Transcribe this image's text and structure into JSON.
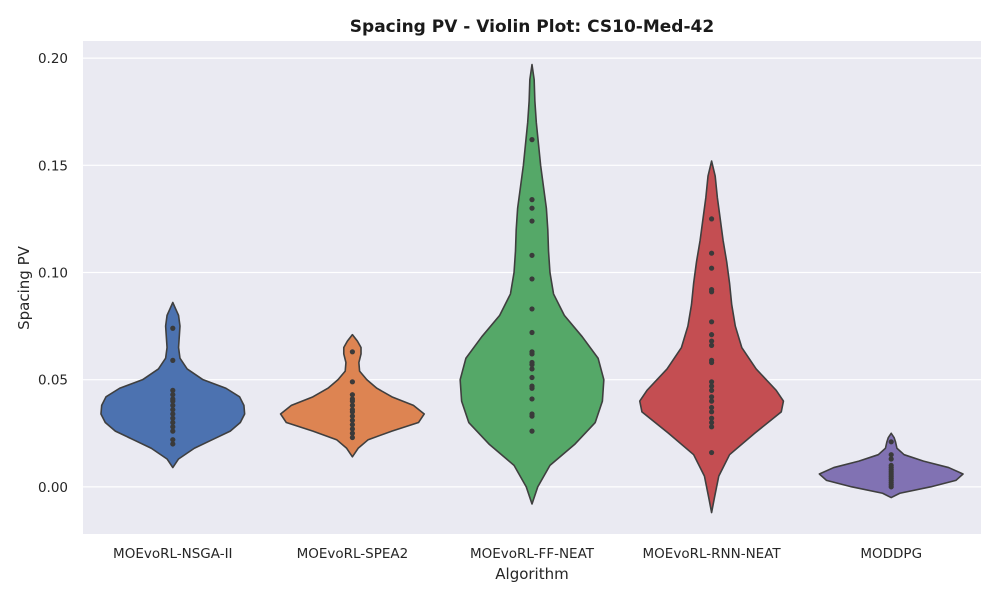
{
  "chart_data": {
    "type": "violin",
    "title": "Spacing PV - Violin Plot: CS10-Med-42",
    "xlabel": "Algorithm",
    "ylabel": "Spacing PV",
    "ylim": [
      -0.022,
      0.208
    ],
    "yticks": [
      "0.00",
      "0.05",
      "0.10",
      "0.15",
      "0.20"
    ],
    "ytick_values": [
      0.0,
      0.05,
      0.1,
      0.15,
      0.2
    ],
    "grid": true,
    "background": "#EAEAF2",
    "categories": [
      "MOEvoRL-NSGA-II",
      "MOEvoRL-SPEA2",
      "MOEvoRL-FF-NEAT",
      "MOEvoRL-RNN-NEAT",
      "MODDPG"
    ],
    "series": [
      {
        "color": "#4C72B0",
        "points": [
          0.02,
          0.022,
          0.026,
          0.028,
          0.03,
          0.032,
          0.034,
          0.036,
          0.038,
          0.04,
          0.041,
          0.043,
          0.045,
          0.059,
          0.074
        ],
        "density": [
          [
            0.009,
            0.0
          ],
          [
            0.013,
            0.08
          ],
          [
            0.018,
            0.3
          ],
          [
            0.022,
            0.55
          ],
          [
            0.026,
            0.8
          ],
          [
            0.03,
            0.94
          ],
          [
            0.034,
            1.0
          ],
          [
            0.038,
            0.99
          ],
          [
            0.042,
            0.93
          ],
          [
            0.046,
            0.74
          ],
          [
            0.05,
            0.42
          ],
          [
            0.055,
            0.2
          ],
          [
            0.06,
            0.1
          ],
          [
            0.065,
            0.08
          ],
          [
            0.07,
            0.09
          ],
          [
            0.075,
            0.1
          ],
          [
            0.08,
            0.08
          ],
          [
            0.083,
            0.04
          ],
          [
            0.086,
            0.0
          ]
        ]
      },
      {
        "color": "#DD8452",
        "points": [
          0.023,
          0.025,
          0.027,
          0.029,
          0.031,
          0.033,
          0.035,
          0.036,
          0.038,
          0.04,
          0.041,
          0.043,
          0.049,
          0.063
        ],
        "density": [
          [
            0.014,
            0.0
          ],
          [
            0.018,
            0.08
          ],
          [
            0.022,
            0.22
          ],
          [
            0.026,
            0.55
          ],
          [
            0.03,
            0.92
          ],
          [
            0.034,
            1.0
          ],
          [
            0.038,
            0.85
          ],
          [
            0.042,
            0.55
          ],
          [
            0.046,
            0.34
          ],
          [
            0.05,
            0.2
          ],
          [
            0.054,
            0.1
          ],
          [
            0.058,
            0.09
          ],
          [
            0.062,
            0.12
          ],
          [
            0.065,
            0.12
          ],
          [
            0.068,
            0.07
          ],
          [
            0.071,
            0.0
          ]
        ]
      },
      {
        "color": "#55A868",
        "points": [
          0.026,
          0.033,
          0.034,
          0.041,
          0.046,
          0.047,
          0.051,
          0.055,
          0.057,
          0.058,
          0.062,
          0.063,
          0.072,
          0.083,
          0.097,
          0.108,
          0.124,
          0.13,
          0.134,
          0.162
        ],
        "density": [
          [
            -0.008,
            0.0
          ],
          [
            0.0,
            0.08
          ],
          [
            0.01,
            0.25
          ],
          [
            0.02,
            0.6
          ],
          [
            0.03,
            0.88
          ],
          [
            0.04,
            0.98
          ],
          [
            0.05,
            1.0
          ],
          [
            0.06,
            0.92
          ],
          [
            0.07,
            0.7
          ],
          [
            0.08,
            0.45
          ],
          [
            0.09,
            0.3
          ],
          [
            0.1,
            0.25
          ],
          [
            0.11,
            0.23
          ],
          [
            0.12,
            0.22
          ],
          [
            0.13,
            0.2
          ],
          [
            0.14,
            0.16
          ],
          [
            0.15,
            0.12
          ],
          [
            0.16,
            0.09
          ],
          [
            0.17,
            0.06
          ],
          [
            0.18,
            0.04
          ],
          [
            0.19,
            0.03
          ],
          [
            0.197,
            0.0
          ]
        ]
      },
      {
        "color": "#C44E52",
        "points": [
          0.016,
          0.028,
          0.03,
          0.032,
          0.035,
          0.037,
          0.04,
          0.042,
          0.045,
          0.047,
          0.049,
          0.058,
          0.059,
          0.066,
          0.068,
          0.071,
          0.077,
          0.091,
          0.092,
          0.102,
          0.109,
          0.125
        ],
        "density": [
          [
            -0.012,
            0.0
          ],
          [
            -0.005,
            0.04
          ],
          [
            0.005,
            0.1
          ],
          [
            0.015,
            0.25
          ],
          [
            0.025,
            0.6
          ],
          [
            0.035,
            0.97
          ],
          [
            0.04,
            1.0
          ],
          [
            0.045,
            0.9
          ],
          [
            0.055,
            0.62
          ],
          [
            0.065,
            0.42
          ],
          [
            0.075,
            0.33
          ],
          [
            0.085,
            0.28
          ],
          [
            0.095,
            0.25
          ],
          [
            0.105,
            0.21
          ],
          [
            0.115,
            0.16
          ],
          [
            0.125,
            0.12
          ],
          [
            0.135,
            0.08
          ],
          [
            0.145,
            0.05
          ],
          [
            0.152,
            0.0
          ]
        ]
      },
      {
        "color": "#8172B3",
        "points": [
          0.0,
          0.001,
          0.002,
          0.003,
          0.004,
          0.005,
          0.006,
          0.007,
          0.008,
          0.009,
          0.01,
          0.013,
          0.015,
          0.021
        ],
        "density": [
          [
            -0.005,
            0.0
          ],
          [
            -0.003,
            0.12
          ],
          [
            0.0,
            0.55
          ],
          [
            0.003,
            0.9
          ],
          [
            0.006,
            1.0
          ],
          [
            0.009,
            0.8
          ],
          [
            0.012,
            0.45
          ],
          [
            0.015,
            0.18
          ],
          [
            0.018,
            0.08
          ],
          [
            0.021,
            0.06
          ],
          [
            0.023,
            0.04
          ],
          [
            0.025,
            0.0
          ]
        ]
      }
    ]
  }
}
